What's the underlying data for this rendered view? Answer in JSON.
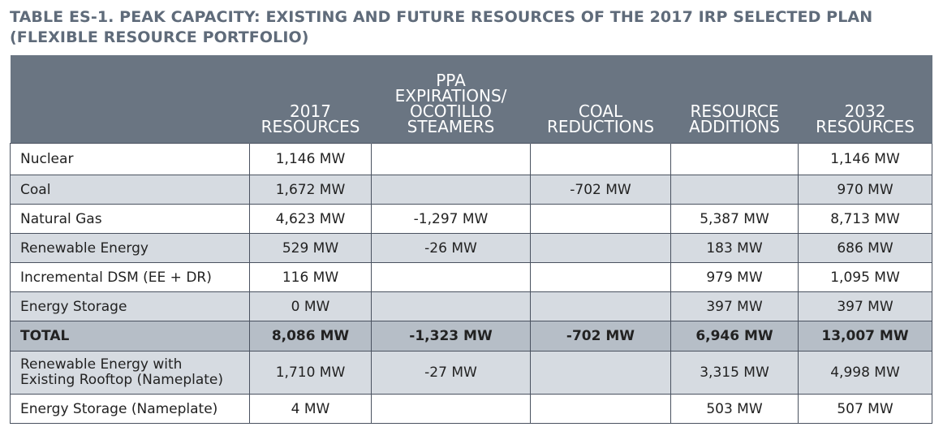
{
  "title_line1": "TABLE ES-1. PEAK CAPACITY: EXISTING AND FUTURE RESOURCES OF THE 2017 IRP SELECTED PLAN",
  "title_line2": "(FLEXIBLE RESOURCE PORTFOLIO)",
  "columns": [
    "",
    "2017\nRESOURCES",
    "PPA\nEXPIRATIONS/\nOCOTILLO\nSTEAMERS",
    "COAL\nREDUCTIONS",
    "RESOURCE\nADDITIONS",
    "2032\nRESOURCES"
  ],
  "rows": [
    {
      "label": "Nuclear",
      "values": [
        "1,146 MW",
        "",
        "",
        "",
        "1,146 MW"
      ]
    },
    {
      "label": "Coal",
      "values": [
        "1,672 MW",
        "",
        "-702 MW",
        "",
        "970 MW"
      ]
    },
    {
      "label": "Natural Gas",
      "values": [
        "4,623 MW",
        "-1,297 MW",
        "",
        "5,387 MW",
        "8,713 MW"
      ]
    },
    {
      "label": "Renewable Energy",
      "values": [
        "529 MW",
        "-26 MW",
        "",
        "183 MW",
        "686 MW"
      ]
    },
    {
      "label": "Incremental DSM (EE + DR)",
      "values": [
        "116 MW",
        "",
        "",
        "979 MW",
        "1,095 MW"
      ]
    },
    {
      "label": "Energy Storage",
      "values": [
        "0 MW",
        "",
        "",
        "397 MW",
        "397 MW"
      ]
    },
    {
      "label": "TOTAL",
      "values": [
        "8,086 MW",
        "-1,323 MW",
        "-702 MW",
        "6,946 MW",
        "13,007 MW"
      ]
    },
    {
      "label": "Renewable Energy with\nExisting Rooftop (Nameplate)",
      "values": [
        "1,710 MW",
        "-27 MW",
        "",
        "3,315 MW",
        "4,998 MW"
      ]
    },
    {
      "label": "Energy Storage (Nameplate)",
      "values": [
        "4 MW",
        "",
        "",
        "503 MW",
        "507 MW"
      ]
    }
  ]
}
